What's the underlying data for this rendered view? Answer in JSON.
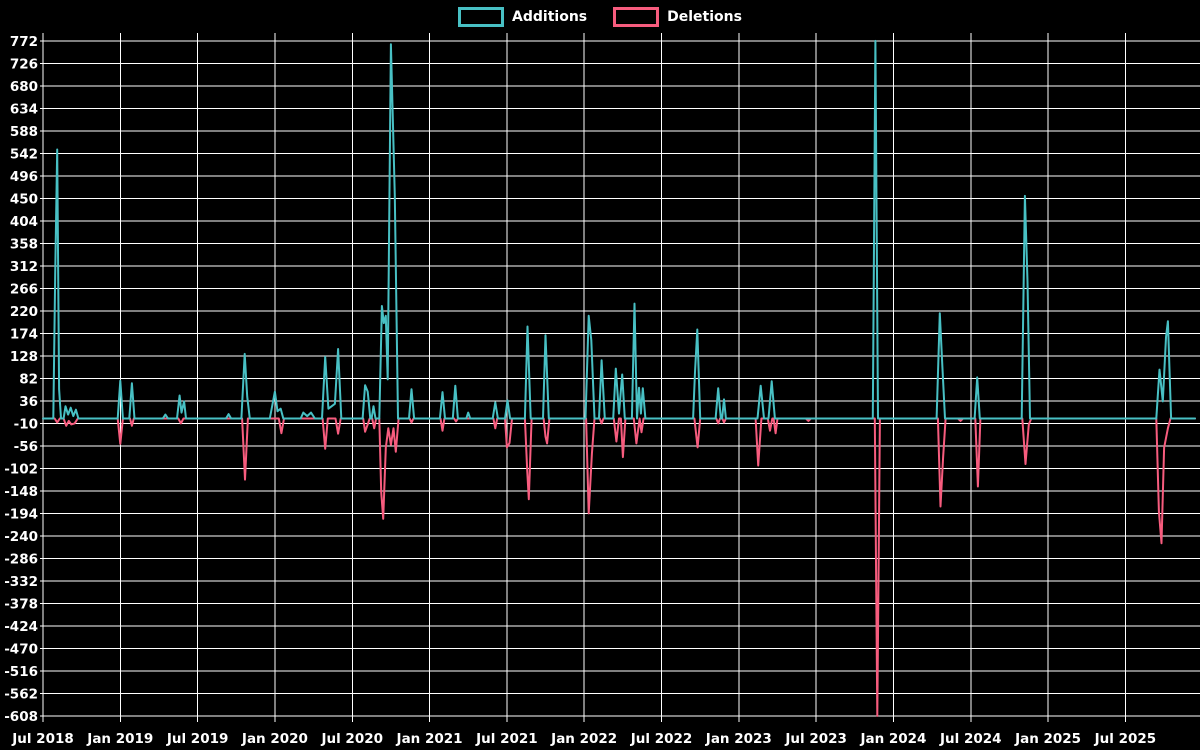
{
  "legend": {
    "additions_label": "Additions",
    "deletions_label": "Deletions"
  },
  "colors": {
    "background": "#000000",
    "grid": "#ffffff",
    "text": "#ffffff",
    "additions": "#48c0c4",
    "deletions": "#f75c7e"
  },
  "chart_data": {
    "type": "line",
    "title": "",
    "xlabel": "",
    "ylabel": "",
    "grid": true,
    "legend_position": "top-center",
    "background": "#000000",
    "ylim": [
      -608,
      772
    ],
    "y_tick_step": 46,
    "y_ticks": [
      772,
      726,
      680,
      634,
      588,
      542,
      496,
      450,
      404,
      358,
      312,
      266,
      220,
      174,
      128,
      82,
      36,
      -10,
      -56,
      -102,
      -148,
      -194,
      -240,
      -286,
      -332,
      -378,
      -424,
      -470,
      -516,
      -562,
      -608
    ],
    "x_ticks": [
      "Jul 2018",
      "Jan 2019",
      "Jul 2019",
      "Jan 2020",
      "Jul 2020",
      "Jan 2021",
      "Jul 2021",
      "Jan 2022",
      "Jul 2022",
      "Jan 2023",
      "Jul 2023",
      "Jan 2024",
      "Jul 2024",
      "Jan 2025",
      "Jul 2025"
    ],
    "x_unit": "months since Jul 2018 (ticks every 6 months)",
    "x_range_months": [
      0,
      89.4
    ],
    "series": [
      {
        "name": "Additions",
        "color": "#48c0c4",
        "points": [
          [
            0,
            0
          ],
          [
            0.8,
            0
          ],
          [
            0.95,
            295
          ],
          [
            1.1,
            550
          ],
          [
            1.25,
            60
          ],
          [
            1.4,
            0
          ],
          [
            1.6,
            0
          ],
          [
            1.75,
            25
          ],
          [
            1.95,
            8
          ],
          [
            2.15,
            22
          ],
          [
            2.35,
            5
          ],
          [
            2.55,
            18
          ],
          [
            2.75,
            0
          ],
          [
            5.8,
            0
          ],
          [
            6.0,
            77
          ],
          [
            6.2,
            0
          ],
          [
            6.7,
            0
          ],
          [
            6.9,
            72
          ],
          [
            7.1,
            0
          ],
          [
            9.3,
            0
          ],
          [
            9.5,
            8
          ],
          [
            9.7,
            0
          ],
          [
            10.4,
            0
          ],
          [
            10.6,
            47
          ],
          [
            10.75,
            12
          ],
          [
            10.95,
            35
          ],
          [
            11.1,
            0
          ],
          [
            14.2,
            0
          ],
          [
            14.4,
            9
          ],
          [
            14.6,
            0
          ],
          [
            15.4,
            0
          ],
          [
            15.65,
            132
          ],
          [
            15.85,
            45
          ],
          [
            16.05,
            0
          ],
          [
            17.6,
            0
          ],
          [
            17.8,
            28
          ],
          [
            18.0,
            55
          ],
          [
            18.2,
            15
          ],
          [
            18.45,
            20
          ],
          [
            18.65,
            0
          ],
          [
            20.0,
            0
          ],
          [
            20.2,
            12
          ],
          [
            20.5,
            5
          ],
          [
            20.8,
            12
          ],
          [
            21.1,
            0
          ],
          [
            21.65,
            0
          ],
          [
            21.9,
            126
          ],
          [
            22.15,
            20
          ],
          [
            22.65,
            30
          ],
          [
            22.9,
            142
          ],
          [
            23.15,
            0
          ],
          [
            24.8,
            0
          ],
          [
            25.0,
            68
          ],
          [
            25.2,
            55
          ],
          [
            25.4,
            0
          ],
          [
            25.5,
            0
          ],
          [
            25.65,
            25
          ],
          [
            25.8,
            0
          ],
          [
            26.1,
            0
          ],
          [
            26.3,
            230
          ],
          [
            26.45,
            195
          ],
          [
            26.6,
            210
          ],
          [
            26.75,
            80
          ],
          [
            27.0,
            765
          ],
          [
            27.3,
            455
          ],
          [
            27.55,
            0
          ],
          [
            28.4,
            0
          ],
          [
            28.6,
            60
          ],
          [
            28.8,
            0
          ],
          [
            30.8,
            0
          ],
          [
            31.0,
            54
          ],
          [
            31.2,
            0
          ],
          [
            31.8,
            0
          ],
          [
            32.0,
            67
          ],
          [
            32.2,
            0
          ],
          [
            32.85,
            0
          ],
          [
            33.0,
            12
          ],
          [
            33.15,
            0
          ],
          [
            34.9,
            0
          ],
          [
            35.1,
            33
          ],
          [
            35.3,
            0
          ],
          [
            35.85,
            0
          ],
          [
            36.05,
            37
          ],
          [
            36.25,
            0
          ],
          [
            37.4,
            0
          ],
          [
            37.6,
            188
          ],
          [
            37.85,
            0
          ],
          [
            38.8,
            0
          ],
          [
            39.0,
            170
          ],
          [
            39.25,
            0
          ],
          [
            42.1,
            0
          ],
          [
            42.35,
            210
          ],
          [
            42.55,
            160
          ],
          [
            42.8,
            0
          ],
          [
            43.15,
            0
          ],
          [
            43.35,
            119
          ],
          [
            43.6,
            0
          ],
          [
            44.25,
            0
          ],
          [
            44.45,
            102
          ],
          [
            44.7,
            10
          ],
          [
            44.95,
            90
          ],
          [
            45.15,
            0
          ],
          [
            45.7,
            0
          ],
          [
            45.9,
            235
          ],
          [
            46.1,
            0
          ],
          [
            46.25,
            63
          ],
          [
            46.4,
            10
          ],
          [
            46.55,
            62
          ],
          [
            46.75,
            0
          ],
          [
            50.45,
            0
          ],
          [
            50.6,
            95
          ],
          [
            50.78,
            182
          ],
          [
            51.0,
            0
          ],
          [
            52.2,
            0
          ],
          [
            52.4,
            62
          ],
          [
            52.6,
            0
          ],
          [
            52.7,
            0
          ],
          [
            52.85,
            39
          ],
          [
            53.0,
            0
          ],
          [
            55.45,
            0
          ],
          [
            55.7,
            67
          ],
          [
            55.95,
            0
          ],
          [
            56.3,
            0
          ],
          [
            56.55,
            76
          ],
          [
            56.8,
            0
          ],
          [
            64.4,
            0
          ],
          [
            64.6,
            772
          ],
          [
            64.8,
            0
          ],
          [
            69.35,
            0
          ],
          [
            69.6,
            215
          ],
          [
            69.8,
            105
          ],
          [
            70.0,
            0
          ],
          [
            72.3,
            0
          ],
          [
            72.5,
            84
          ],
          [
            72.7,
            0
          ],
          [
            75.95,
            0
          ],
          [
            76.2,
            455
          ],
          [
            76.4,
            280
          ],
          [
            76.6,
            0
          ],
          [
            86.4,
            0
          ],
          [
            86.65,
            100
          ],
          [
            86.9,
            35
          ],
          [
            87.15,
            166
          ],
          [
            87.3,
            199
          ],
          [
            87.55,
            0
          ],
          [
            89.4,
            0
          ]
        ]
      },
      {
        "name": "Deletions",
        "color": "#f75c7e",
        "points": [
          [
            0,
            0
          ],
          [
            0.9,
            0
          ],
          [
            1.1,
            -8
          ],
          [
            1.3,
            0
          ],
          [
            1.6,
            0
          ],
          [
            1.8,
            -15
          ],
          [
            2.0,
            -5
          ],
          [
            2.2,
            -12
          ],
          [
            2.45,
            -10
          ],
          [
            2.7,
            0
          ],
          [
            5.8,
            0
          ],
          [
            6.0,
            -52
          ],
          [
            6.2,
            0
          ],
          [
            6.75,
            0
          ],
          [
            6.9,
            -15
          ],
          [
            7.05,
            0
          ],
          [
            10.5,
            0
          ],
          [
            10.7,
            -10
          ],
          [
            10.9,
            0
          ],
          [
            15.45,
            0
          ],
          [
            15.68,
            -125
          ],
          [
            15.9,
            0
          ],
          [
            18.3,
            0
          ],
          [
            18.5,
            -30
          ],
          [
            18.7,
            0
          ],
          [
            21.7,
            0
          ],
          [
            21.9,
            -62
          ],
          [
            22.1,
            0
          ],
          [
            22.7,
            0
          ],
          [
            22.9,
            -31
          ],
          [
            23.1,
            0
          ],
          [
            24.85,
            0
          ],
          [
            25.0,
            -27
          ],
          [
            25.2,
            -12
          ],
          [
            25.35,
            0
          ],
          [
            25.55,
            0
          ],
          [
            25.7,
            -20
          ],
          [
            25.85,
            0
          ],
          [
            26.1,
            0
          ],
          [
            26.25,
            -150
          ],
          [
            26.4,
            -205
          ],
          [
            26.6,
            -60
          ],
          [
            26.8,
            -20
          ],
          [
            27.0,
            -54
          ],
          [
            27.2,
            -20
          ],
          [
            27.38,
            -68
          ],
          [
            27.6,
            0
          ],
          [
            28.45,
            0
          ],
          [
            28.6,
            -8
          ],
          [
            28.75,
            0
          ],
          [
            30.85,
            0
          ],
          [
            31.0,
            -25
          ],
          [
            31.15,
            0
          ],
          [
            31.9,
            0
          ],
          [
            32.05,
            -6
          ],
          [
            32.2,
            0
          ],
          [
            34.95,
            0
          ],
          [
            35.1,
            -20
          ],
          [
            35.25,
            0
          ],
          [
            35.85,
            0
          ],
          [
            36.0,
            -59
          ],
          [
            36.2,
            -50
          ],
          [
            36.4,
            0
          ],
          [
            37.4,
            0
          ],
          [
            37.58,
            -106
          ],
          [
            37.7,
            -165
          ],
          [
            37.92,
            0
          ],
          [
            38.85,
            0
          ],
          [
            39.0,
            -37
          ],
          [
            39.12,
            -51
          ],
          [
            39.3,
            0
          ],
          [
            42.15,
            0
          ],
          [
            42.35,
            -194
          ],
          [
            42.6,
            -72
          ],
          [
            42.8,
            0
          ],
          [
            43.2,
            0
          ],
          [
            43.35,
            -10
          ],
          [
            43.5,
            0
          ],
          [
            44.3,
            0
          ],
          [
            44.5,
            -47
          ],
          [
            44.7,
            0
          ],
          [
            44.85,
            0
          ],
          [
            45.0,
            -79
          ],
          [
            45.2,
            0
          ],
          [
            45.85,
            0
          ],
          [
            46.05,
            -51
          ],
          [
            46.3,
            0
          ],
          [
            46.45,
            -28
          ],
          [
            46.6,
            0
          ],
          [
            50.55,
            0
          ],
          [
            50.8,
            -59
          ],
          [
            51.0,
            0
          ],
          [
            52.25,
            0
          ],
          [
            52.4,
            -10
          ],
          [
            52.55,
            0
          ],
          [
            52.72,
            0
          ],
          [
            52.85,
            -8
          ],
          [
            53.0,
            0
          ],
          [
            55.3,
            0
          ],
          [
            55.5,
            -96
          ],
          [
            55.75,
            0
          ],
          [
            56.25,
            0
          ],
          [
            56.42,
            -25
          ],
          [
            56.6,
            0
          ],
          [
            56.7,
            0
          ],
          [
            56.85,
            -30
          ],
          [
            57.0,
            0
          ],
          [
            59.2,
            0
          ],
          [
            59.4,
            -5
          ],
          [
            59.6,
            0
          ],
          [
            64.55,
            0
          ],
          [
            64.75,
            -608
          ],
          [
            64.95,
            0
          ],
          [
            69.45,
            0
          ],
          [
            69.65,
            -180
          ],
          [
            69.85,
            -80
          ],
          [
            70.05,
            0
          ],
          [
            71.0,
            0
          ],
          [
            71.2,
            -5
          ],
          [
            71.4,
            0
          ],
          [
            72.35,
            0
          ],
          [
            72.55,
            -139
          ],
          [
            72.75,
            0
          ],
          [
            76.0,
            0
          ],
          [
            76.25,
            -93
          ],
          [
            76.5,
            -12
          ],
          [
            76.7,
            0
          ],
          [
            86.4,
            0
          ],
          [
            86.6,
            -190
          ],
          [
            86.8,
            -255
          ],
          [
            87.0,
            -60
          ],
          [
            87.3,
            -20
          ],
          [
            87.5,
            0
          ],
          [
            89.4,
            0
          ]
        ]
      }
    ]
  }
}
